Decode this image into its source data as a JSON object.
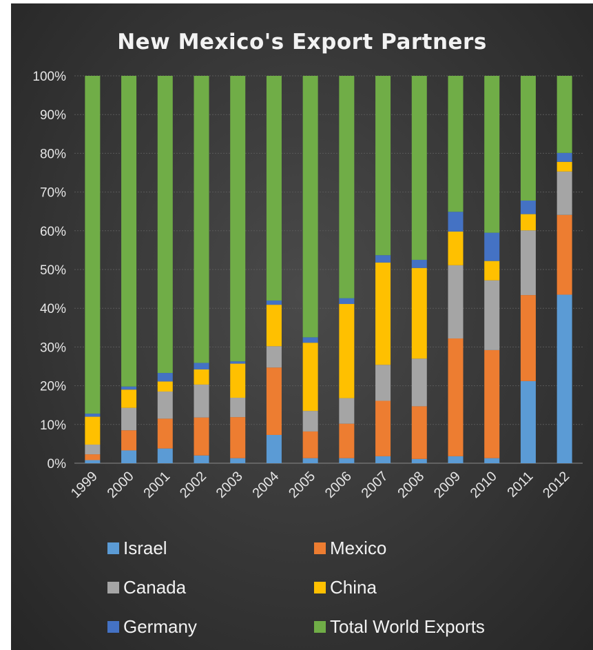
{
  "chart_data": {
    "type": "bar",
    "stacked": true,
    "percent_stacked": true,
    "title": "New Mexico's Export Partners",
    "xlabel": "",
    "ylabel": "",
    "ylim": [
      0,
      100
    ],
    "yticks": [
      "0%",
      "10%",
      "20%",
      "30%",
      "40%",
      "50%",
      "60%",
      "70%",
      "80%",
      "90%",
      "100%"
    ],
    "grid": true,
    "legend_position": "bottom",
    "categories": [
      "1999",
      "2000",
      "2001",
      "2002",
      "2003",
      "2004",
      "2005",
      "2006",
      "2007",
      "2008",
      "2009",
      "2010",
      "2011",
      "2012"
    ],
    "series": [
      {
        "name": "Israel",
        "color": "#5b9bd5",
        "values": [
          0.8,
          3.3,
          3.8,
          2.0,
          1.3,
          7.3,
          1.3,
          1.3,
          1.8,
          1.1,
          1.8,
          1.3,
          21.2,
          43.5
        ]
      },
      {
        "name": "Mexico",
        "color": "#ed7d31",
        "values": [
          1.5,
          5.2,
          7.7,
          9.8,
          10.6,
          17.4,
          6.9,
          8.9,
          14.3,
          13.6,
          30.4,
          27.9,
          22.2,
          20.6
        ]
      },
      {
        "name": "Canada",
        "color": "#a5a5a5",
        "values": [
          2.5,
          5.8,
          7.0,
          8.5,
          5.0,
          5.5,
          5.3,
          6.6,
          9.3,
          12.3,
          18.9,
          18.0,
          16.7,
          11.2
        ]
      },
      {
        "name": "China",
        "color": "#ffc000",
        "values": [
          7.2,
          4.7,
          2.6,
          3.9,
          8.8,
          10.7,
          17.6,
          24.3,
          26.4,
          23.4,
          8.7,
          5.0,
          4.2,
          2.5
        ]
      },
      {
        "name": "Germany",
        "color": "#4472c4",
        "values": [
          0.8,
          0.8,
          2.2,
          1.7,
          0.6,
          1.1,
          1.4,
          1.5,
          1.9,
          2.1,
          5.1,
          7.3,
          3.5,
          2.3
        ]
      },
      {
        "name": "Total World Exports",
        "color": "#70ad47",
        "values": [
          87.2,
          80.2,
          76.7,
          74.1,
          73.7,
          58.0,
          67.5,
          57.4,
          46.3,
          47.5,
          35.1,
          40.5,
          32.2,
          19.9
        ]
      }
    ]
  }
}
